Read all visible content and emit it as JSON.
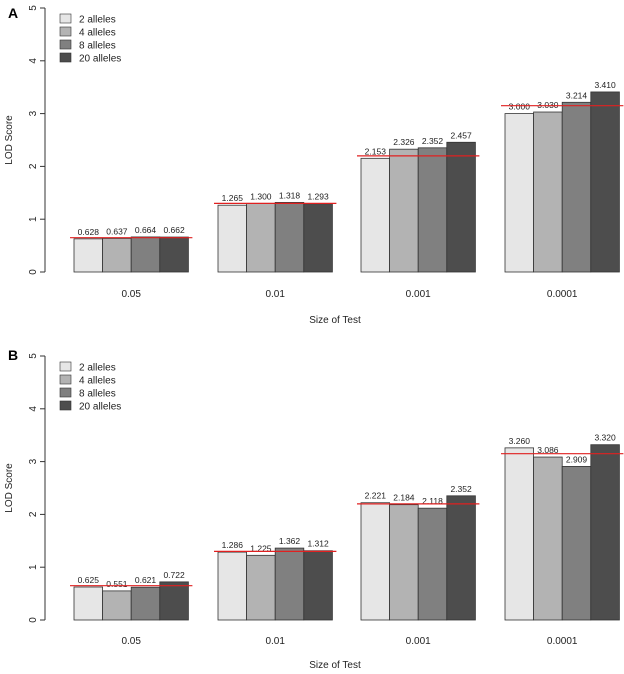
{
  "chart_data": [
    {
      "panel": "A",
      "type": "bar",
      "xlabel": "Size of Test",
      "ylabel": "LOD Score",
      "ylim": [
        0,
        5
      ],
      "yticks": [
        "0",
        "1",
        "2",
        "3",
        "4",
        "5"
      ],
      "categories": [
        "0.05",
        "0.01",
        "0.001",
        "0.0001"
      ],
      "thresholds": [
        0.65,
        1.3,
        2.2,
        3.15
      ],
      "legend_position": "top-left",
      "series": [
        {
          "name": "2 alleles",
          "color": "#e6e6e6",
          "values": [
            0.628,
            1.265,
            2.153,
            3.0
          ],
          "labels": [
            "0.628",
            "1.265",
            "2.153",
            "3.000"
          ]
        },
        {
          "name": "4 alleles",
          "color": "#b3b3b3",
          "values": [
            0.637,
            1.3,
            2.326,
            3.03
          ],
          "labels": [
            "0.637",
            "1.300",
            "2.326",
            "3.030"
          ]
        },
        {
          "name": "8 alleles",
          "color": "#808080",
          "values": [
            0.664,
            1.318,
            2.352,
            3.214
          ],
          "labels": [
            "0.664",
            "1.318",
            "2.352",
            "3.214"
          ]
        },
        {
          "name": "20 alleles",
          "color": "#4d4d4d",
          "values": [
            0.662,
            1.293,
            2.457,
            3.41
          ],
          "labels": [
            "0.662",
            "1.293",
            "2.457",
            "3.410"
          ]
        }
      ]
    },
    {
      "panel": "B",
      "type": "bar",
      "xlabel": "Size of Test",
      "ylabel": "LOD Score",
      "ylim": [
        0,
        5
      ],
      "yticks": [
        "0",
        "1",
        "2",
        "3",
        "4",
        "5"
      ],
      "categories": [
        "0.05",
        "0.01",
        "0.001",
        "0.0001"
      ],
      "thresholds": [
        0.65,
        1.3,
        2.2,
        3.15
      ],
      "legend_position": "top-left",
      "series": [
        {
          "name": "2 alleles",
          "color": "#e6e6e6",
          "values": [
            0.625,
            1.286,
            2.221,
            3.26
          ],
          "labels": [
            "0.625",
            "1.286",
            "2.221",
            "3.260"
          ]
        },
        {
          "name": "4 alleles",
          "color": "#b3b3b3",
          "values": [
            0.551,
            1.225,
            2.184,
            3.086
          ],
          "labels": [
            "0.551",
            "1.225",
            "2.184",
            "3.086"
          ]
        },
        {
          "name": "8 alleles",
          "color": "#808080",
          "values": [
            0.621,
            1.362,
            2.118,
            2.909
          ],
          "labels": [
            "0.621",
            "1.362",
            "2.118",
            "2.909"
          ]
        },
        {
          "name": "20 alleles",
          "color": "#4d4d4d",
          "values": [
            0.722,
            1.312,
            2.352,
            3.32
          ],
          "labels": [
            "0.722",
            "1.312",
            "2.352",
            "3.320"
          ]
        }
      ]
    }
  ],
  "colors": {
    "threshold_line": "#e02020",
    "bar_stroke": "#333333"
  }
}
